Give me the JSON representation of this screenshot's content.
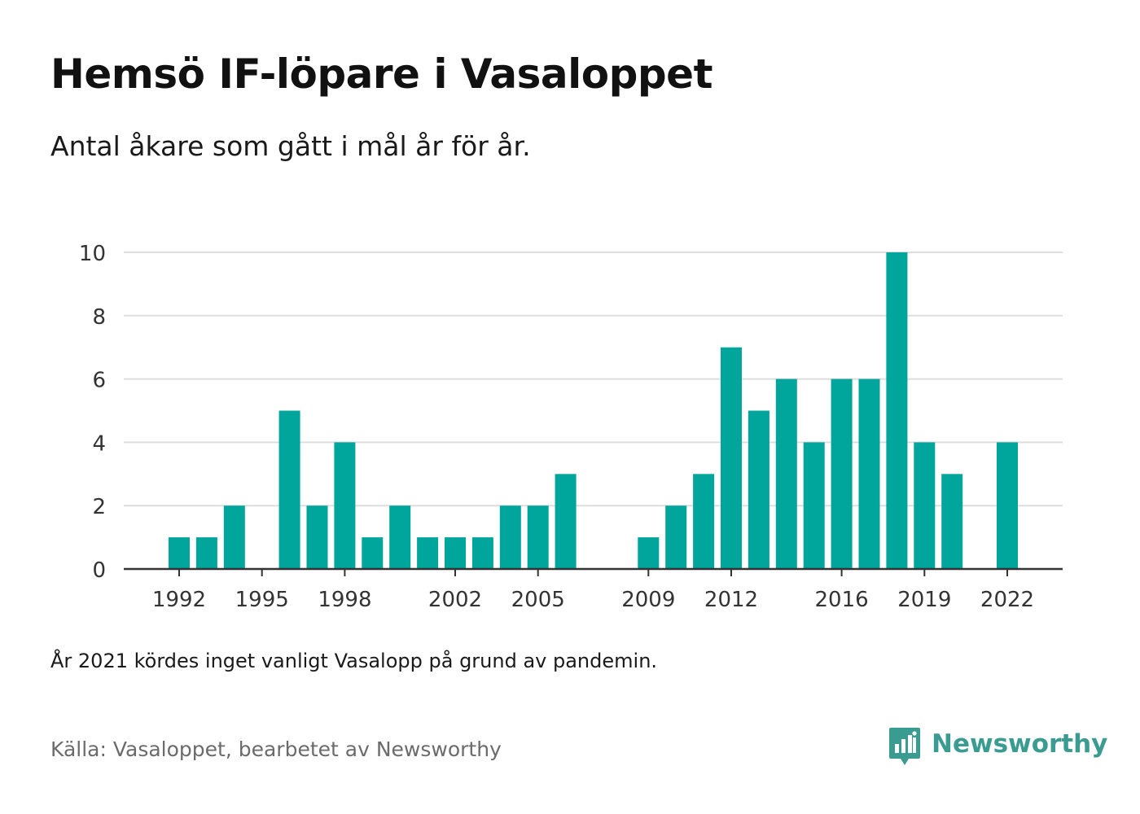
{
  "header": {
    "title": "Hemsö IF-löpare i Vasaloppet",
    "subtitle": "Antal åkare som gått i mål år för år."
  },
  "footer": {
    "note": "År 2021 kördes inget vanligt Vasalopp på grund av pandemin.",
    "source": "Källa: Vasaloppet, bearbetet av Newsworthy",
    "brand": "Newsworthy",
    "brand_icon": "newsworthy-logo-icon"
  },
  "colors": {
    "bar": "#00a59b",
    "grid": "#dddddd",
    "axis": "#333333",
    "brand": "#3a9b91"
  },
  "chart_data": {
    "type": "bar",
    "title": "",
    "xlabel": "",
    "ylabel": "",
    "x": [
      1992,
      1993,
      1994,
      1995,
      1996,
      1997,
      1998,
      1999,
      2000,
      2001,
      2002,
      2003,
      2004,
      2005,
      2006,
      2007,
      2008,
      2009,
      2010,
      2011,
      2012,
      2013,
      2014,
      2015,
      2016,
      2017,
      2018,
      2019,
      2020,
      2021,
      2022
    ],
    "values": [
      1,
      1,
      2,
      0,
      5,
      2,
      4,
      1,
      2,
      1,
      1,
      1,
      2,
      2,
      3,
      0,
      0,
      1,
      2,
      3,
      7,
      5,
      6,
      4,
      6,
      6,
      10,
      4,
      3,
      0,
      4
    ],
    "xticks": [
      1992,
      1995,
      1998,
      2002,
      2005,
      2009,
      2012,
      2016,
      2019,
      2022
    ],
    "yticks": [
      0,
      2,
      4,
      6,
      8,
      10
    ],
    "ylim": [
      0,
      10
    ],
    "xlim": [
      1990,
      2024
    ],
    "grid": true,
    "legend": "none"
  }
}
